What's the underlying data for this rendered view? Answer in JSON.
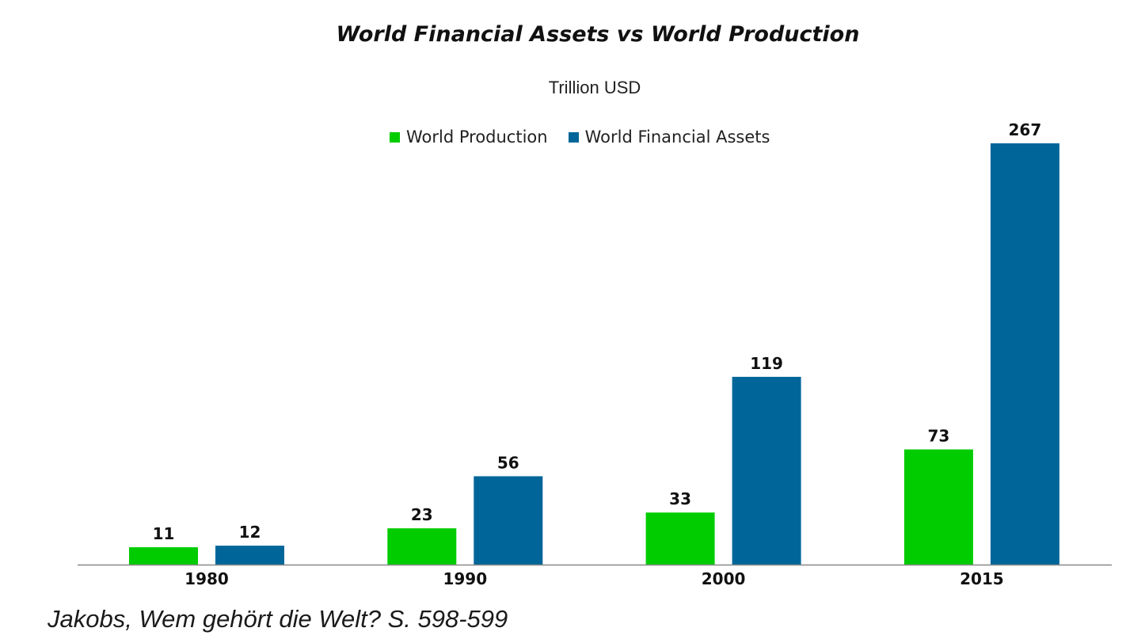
{
  "chart_data": {
    "type": "bar",
    "title": "World Financial Assets vs World Production",
    "subtitle": "Trillion USD",
    "categories": [
      "1980",
      "1990",
      "2000",
      "2015"
    ],
    "series": [
      {
        "name": "World Production",
        "color": "#00cc00",
        "values": [
          11,
          23,
          33,
          73
        ]
      },
      {
        "name": "World Financial Assets",
        "color": "#006699",
        "values": [
          12,
          56,
          119,
          267
        ]
      }
    ],
    "xlabel": "",
    "ylabel": "",
    "ylim": [
      0,
      267
    ],
    "grid": false,
    "legend_position": "top-center",
    "data_labels": true
  },
  "source_note": "Jakobs, Wem gehört die Welt? S. 598-599"
}
